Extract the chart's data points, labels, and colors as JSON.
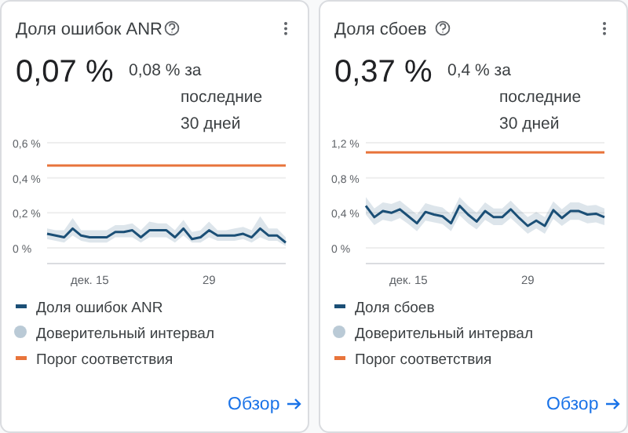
{
  "chart_data": [
    {
      "type": "line",
      "title": "Доля ошибок ANR",
      "subtitle": "0,07 %",
      "annotations": [
        "0,08 % за последние 30 дней",
        "Доверительный интервал",
        "Обзор"
      ],
      "categories": [
        null,
        null,
        null,
        null,
        null,
        "дек. 15",
        null,
        null,
        null,
        null,
        null,
        null,
        null,
        null,
        null,
        null,
        null,
        null,
        null,
        "29",
        null,
        null,
        null,
        null,
        null,
        null,
        null,
        null,
        null
      ],
      "series": [
        {
          "name": "Доля ошибок ANR",
          "color": "#1b4f76",
          "values": [
            0.08,
            0.07,
            0.06,
            0.11,
            0.07,
            0.06,
            0.06,
            0.06,
            0.09,
            0.09,
            0.1,
            0.06,
            0.1,
            0.1,
            0.1,
            0.06,
            0.11,
            0.05,
            0.06,
            0.1,
            0.07,
            0.07,
            0.07,
            0.08,
            0.06,
            0.11,
            0.07,
            0.07,
            0.03
          ],
          "lower": [
            0.05,
            0.04,
            0.03,
            0.07,
            0.04,
            0.03,
            0.03,
            0.03,
            0.06,
            0.06,
            0.06,
            0.03,
            0.06,
            0.06,
            0.06,
            0.03,
            0.07,
            0.03,
            0.03,
            0.06,
            0.04,
            0.04,
            0.04,
            0.05,
            0.03,
            0.06,
            0.04,
            0.04,
            0.01
          ],
          "upper": [
            0.11,
            0.1,
            0.1,
            0.17,
            0.1,
            0.1,
            0.1,
            0.1,
            0.13,
            0.13,
            0.14,
            0.1,
            0.15,
            0.14,
            0.14,
            0.1,
            0.16,
            0.09,
            0.1,
            0.15,
            0.1,
            0.1,
            0.11,
            0.12,
            0.1,
            0.18,
            0.11,
            0.11,
            0.06
          ]
        }
      ],
      "ref_lines": [
        {
          "axis": "y",
          "value": 0.47,
          "label": "Порог соответствия",
          "color": "#e8743b"
        }
      ],
      "ylim": [
        -0.09,
        0.6
      ],
      "yticks": [
        {
          "value": 0,
          "label": "0 %"
        },
        {
          "value": 0.2,
          "label": "0,2 %"
        },
        {
          "value": 0.4,
          "label": "0,4 %"
        },
        {
          "value": 0.6,
          "label": "0,6 %"
        }
      ],
      "grid": "y",
      "legend": "bottom",
      "marker": "none",
      "line_style": "solid"
    },
    {
      "type": "line",
      "title": "Доля сбоев",
      "subtitle": "0,37 %",
      "annotations": [
        "0,4 % за последние 30 дней",
        "Доверительный интервал",
        "Обзор"
      ],
      "categories": [
        null,
        null,
        null,
        null,
        null,
        "дек. 15",
        null,
        null,
        null,
        null,
        null,
        null,
        null,
        null,
        null,
        null,
        null,
        null,
        null,
        "29",
        null,
        null,
        null,
        null,
        null,
        null,
        null,
        null,
        null
      ],
      "series": [
        {
          "name": "Доля сбоев",
          "color": "#1b4f76",
          "values": [
            0.48,
            0.35,
            0.42,
            0.4,
            0.44,
            0.36,
            0.28,
            0.41,
            0.38,
            0.36,
            0.28,
            0.48,
            0.38,
            0.3,
            0.42,
            0.35,
            0.35,
            0.44,
            0.34,
            0.25,
            0.31,
            0.25,
            0.43,
            0.34,
            0.42,
            0.42,
            0.38,
            0.39,
            0.35
          ],
          "lower": [
            0.38,
            0.26,
            0.32,
            0.3,
            0.34,
            0.27,
            0.19,
            0.31,
            0.29,
            0.27,
            0.19,
            0.37,
            0.28,
            0.21,
            0.32,
            0.26,
            0.26,
            0.34,
            0.25,
            0.16,
            0.22,
            0.16,
            0.33,
            0.25,
            0.32,
            0.32,
            0.28,
            0.29,
            0.26
          ],
          "upper": [
            0.58,
            0.45,
            0.52,
            0.5,
            0.54,
            0.46,
            0.38,
            0.51,
            0.48,
            0.46,
            0.38,
            0.58,
            0.48,
            0.4,
            0.52,
            0.45,
            0.45,
            0.54,
            0.44,
            0.35,
            0.41,
            0.35,
            0.53,
            0.44,
            0.52,
            0.52,
            0.48,
            0.49,
            0.45
          ]
        }
      ],
      "ref_lines": [
        {
          "axis": "y",
          "value": 1.09,
          "label": "Порог соответствия",
          "color": "#e8743b"
        }
      ],
      "ylim": [
        -0.18,
        1.2
      ],
      "yticks": [
        {
          "value": 0,
          "label": "0 %"
        },
        {
          "value": 0.4,
          "label": "0,4 %"
        },
        {
          "value": 0.8,
          "label": "0,8 %"
        },
        {
          "value": 1.2,
          "label": "1,2 %"
        }
      ],
      "grid": "y",
      "legend": "bottom",
      "marker": "none",
      "line_style": "solid"
    }
  ]
}
